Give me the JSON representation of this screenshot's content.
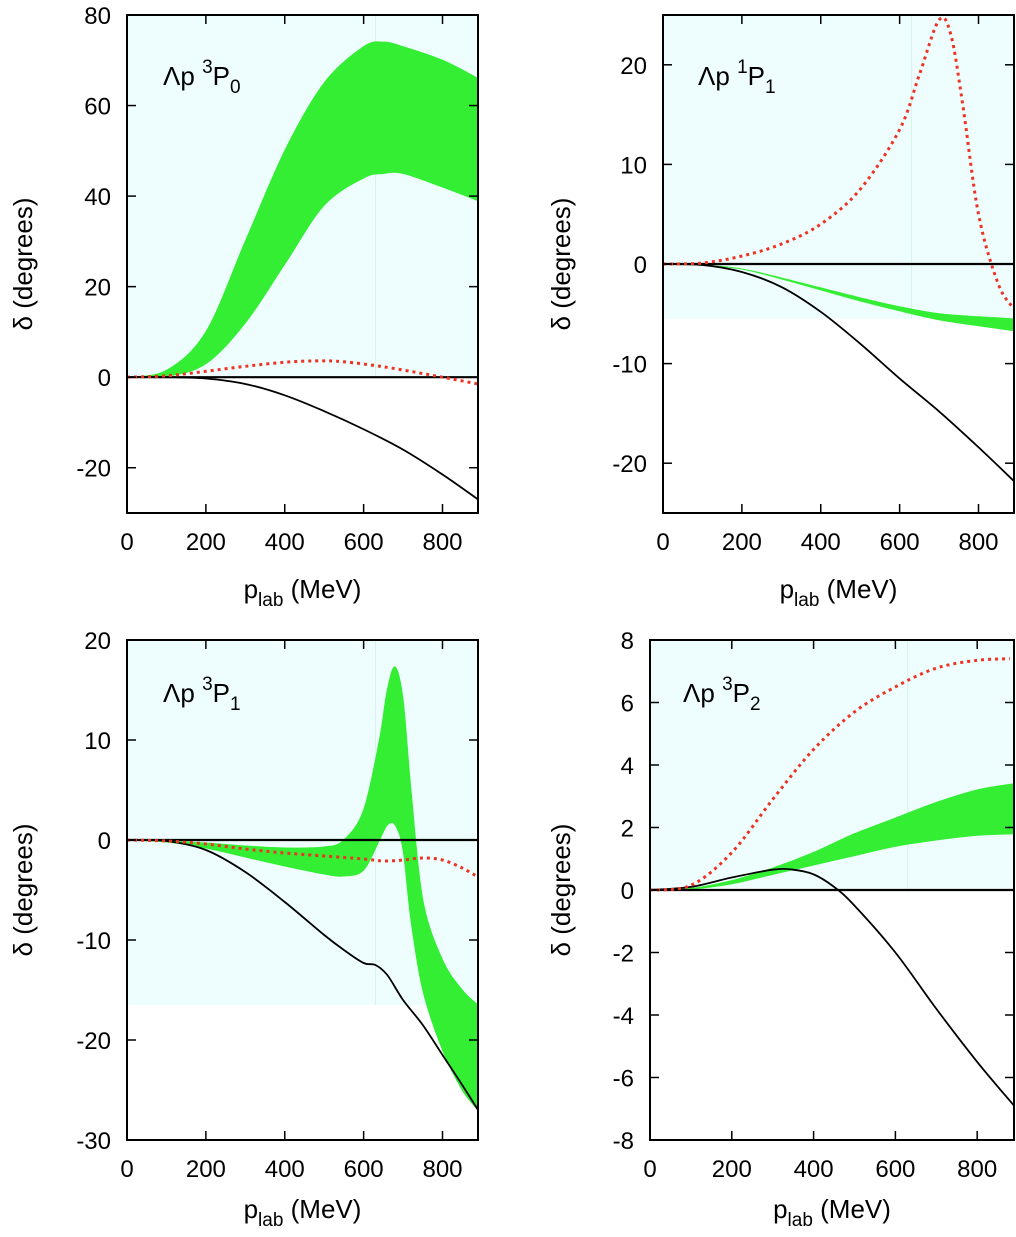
{
  "chart_data": [
    {
      "type": "line",
      "panel_label": {
        "prefix": "Λp ",
        "sup": "3",
        "main": "P",
        "sub": "0"
      },
      "xlabel": {
        "main": "p",
        "sub": "lab",
        "rest": " (MeV)"
      },
      "ylabel": "δ (degrees)",
      "xlim": [
        0,
        890
      ],
      "ylim": [
        -30,
        80
      ],
      "xticks": [
        0,
        200,
        400,
        600,
        800
      ],
      "yticks": [
        -20,
        0,
        20,
        40,
        60,
        80
      ],
      "shaded_region": {
        "color": "#eefefe",
        "y_from": 0
      },
      "threshold_line_x": 630,
      "band": {
        "color": "#33ee33",
        "x": [
          0,
          100,
          200,
          300,
          400,
          500,
          600,
          650,
          700,
          800,
          890
        ],
        "upper": [
          0,
          1.5,
          10,
          30,
          50,
          65,
          73,
          74,
          73,
          70,
          66
        ],
        "lower": [
          0,
          0.2,
          3,
          12,
          25,
          38,
          44,
          45,
          45,
          42,
          39
        ]
      },
      "dotted": {
        "color": "#ee3322",
        "x": [
          0,
          100,
          200,
          300,
          400,
          480,
          550,
          650,
          750,
          800,
          890
        ],
        "y": [
          0,
          0.3,
          1.3,
          2.4,
          3.3,
          3.6,
          3.4,
          2.3,
          0.8,
          0,
          -1.5
        ]
      },
      "solid": {
        "color": "#000000",
        "x": [
          0,
          100,
          200,
          300,
          400,
          500,
          600,
          700,
          800,
          890
        ],
        "y": [
          0,
          0,
          -0.3,
          -1.5,
          -4,
          -7.5,
          -11.5,
          -16,
          -21.5,
          -27
        ]
      }
    },
    {
      "type": "line",
      "panel_label": {
        "prefix": "Λp ",
        "sup": "1",
        "main": "P",
        "sub": "1"
      },
      "xlabel": {
        "main": "p",
        "sub": "lab",
        "rest": " (MeV)"
      },
      "ylabel": "δ (degrees)",
      "xlim": [
        0,
        890
      ],
      "ylim": [
        -25,
        25
      ],
      "xticks": [
        0,
        200,
        400,
        600,
        800
      ],
      "yticks": [
        -20,
        -10,
        0,
        10,
        20
      ],
      "shaded_region": {
        "color": "#eefefe",
        "y_from": -5.5
      },
      "threshold_line_x": 630,
      "band": {
        "color": "#33ee33",
        "x": [
          0,
          100,
          200,
          300,
          400,
          500,
          600,
          700,
          800,
          890
        ],
        "upper": [
          0,
          -0.1,
          -0.5,
          -1.4,
          -2.4,
          -3.4,
          -4.3,
          -5,
          -5.3,
          -5.5
        ],
        "lower": [
          0,
          -0.1,
          -0.5,
          -1.5,
          -2.6,
          -3.7,
          -4.7,
          -5.6,
          -6.2,
          -6.7
        ]
      },
      "dotted": {
        "color": "#ee3322",
        "x": [
          0,
          100,
          200,
          300,
          400,
          500,
          600,
          650,
          700,
          730,
          760,
          800,
          850,
          890
        ],
        "y": [
          0,
          0.1,
          0.8,
          2,
          4,
          7.5,
          13.5,
          19,
          24.5,
          23,
          16,
          5,
          -2,
          -4.5
        ]
      },
      "solid": {
        "color": "#000000",
        "x": [
          0,
          100,
          200,
          300,
          400,
          500,
          600,
          700,
          800,
          890
        ],
        "y": [
          0,
          -0.1,
          -0.8,
          -2.3,
          -4.8,
          -8,
          -11.5,
          -14.8,
          -18.4,
          -21.8
        ]
      }
    },
    {
      "type": "line",
      "panel_label": {
        "prefix": "Λp ",
        "sup": "3",
        "main": "P",
        "sub": "1"
      },
      "xlabel": {
        "main": "p",
        "sub": "lab",
        "rest": " (MeV)"
      },
      "ylabel": "δ (degrees)",
      "xlim": [
        0,
        890
      ],
      "ylim": [
        -30,
        20
      ],
      "xticks": [
        0,
        200,
        400,
        600,
        800
      ],
      "yticks": [
        -30,
        -20,
        -10,
        0,
        10,
        20
      ],
      "shaded_region": {
        "color": "#eefefe",
        "y_from": -16.5
      },
      "threshold_line_x": 630,
      "band": {
        "color": "#33ee33",
        "x": [
          0,
          100,
          200,
          300,
          400,
          500,
          550,
          600,
          640,
          660,
          680,
          700,
          720,
          750,
          800,
          850,
          890
        ],
        "upper": [
          0,
          -0.1,
          -0.3,
          -0.6,
          -0.8,
          -0.7,
          0,
          3,
          10,
          15,
          17.3,
          14,
          5,
          -6,
          -12,
          -15,
          -16.5
        ],
        "lower": [
          0,
          -0.2,
          -0.8,
          -1.7,
          -2.6,
          -3.4,
          -3.6,
          -3,
          0,
          1.5,
          1.5,
          -1,
          -8,
          -15,
          -21,
          -25,
          -27
        ]
      },
      "dotted": {
        "color": "#ee3322",
        "x": [
          0,
          100,
          200,
          300,
          400,
          500,
          600,
          650,
          700,
          750,
          800,
          850,
          890
        ],
        "y": [
          0,
          -0.1,
          -0.4,
          -0.9,
          -1.3,
          -1.6,
          -1.9,
          -2.1,
          -2,
          -1.8,
          -2,
          -2.8,
          -3.7
        ]
      },
      "solid": {
        "color": "#000000",
        "x": [
          0,
          100,
          200,
          300,
          400,
          500,
          550,
          600,
          630,
          660,
          700,
          750,
          800,
          850,
          890
        ],
        "y": [
          0,
          -0.1,
          -1,
          -3.2,
          -6.2,
          -9.5,
          -11,
          -12.3,
          -12.5,
          -13.5,
          -16,
          -18.5,
          -21.5,
          -24.5,
          -27
        ]
      }
    },
    {
      "type": "line",
      "panel_label": {
        "prefix": "Λp ",
        "sup": "3",
        "main": "P",
        "sub": "2"
      },
      "xlabel": {
        "main": "p",
        "sub": "lab",
        "rest": " (MeV)"
      },
      "ylabel": "δ (degrees)",
      "xlim": [
        0,
        890
      ],
      "ylim": [
        -8,
        8
      ],
      "xticks": [
        0,
        200,
        400,
        600,
        800
      ],
      "yticks": [
        -8,
        -6,
        -4,
        -2,
        0,
        2,
        4,
        6,
        8
      ],
      "shaded_region": {
        "color": "#eefefe",
        "y_from": 0
      },
      "threshold_line_x": 630,
      "band": {
        "color": "#33ee33",
        "x": [
          0,
          100,
          200,
          300,
          400,
          500,
          600,
          700,
          800,
          890
        ],
        "upper": [
          0,
          0.05,
          0.3,
          0.7,
          1.2,
          1.8,
          2.3,
          2.8,
          3.2,
          3.4
        ],
        "lower": [
          0,
          0.03,
          0.2,
          0.5,
          0.8,
          1.1,
          1.4,
          1.6,
          1.75,
          1.8
        ]
      },
      "dotted": {
        "color": "#ee3322",
        "x": [
          0,
          100,
          200,
          300,
          400,
          500,
          600,
          700,
          800,
          880
        ],
        "y": [
          0,
          0.15,
          1.2,
          2.9,
          4.5,
          5.7,
          6.5,
          7.1,
          7.35,
          7.4
        ]
      },
      "solid": {
        "color": "#000000",
        "x": [
          0,
          100,
          200,
          300,
          350,
          400,
          450,
          500,
          600,
          700,
          800,
          890
        ],
        "y": [
          0,
          0.1,
          0.4,
          0.65,
          0.65,
          0.5,
          0.1,
          -0.5,
          -2,
          -3.8,
          -5.5,
          -6.9
        ]
      }
    }
  ]
}
